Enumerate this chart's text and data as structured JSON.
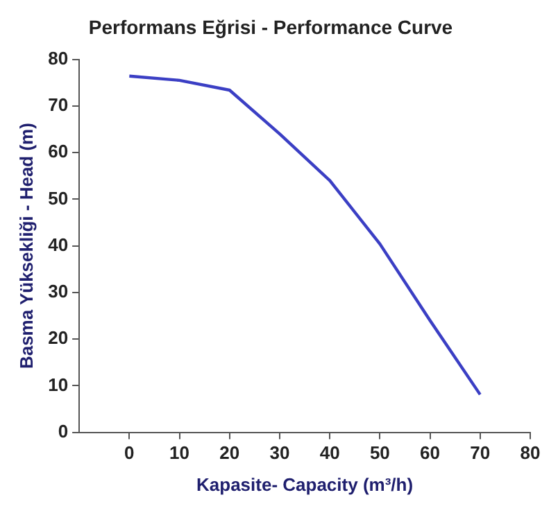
{
  "chart_data": {
    "type": "line",
    "title": "Performans Eğrisi - Performance Curve",
    "xlabel": "Kapasite- Capacity (m³/h)",
    "ylabel": "Basma Yüksekliği - Head (m)",
    "x": [
      0,
      10,
      20,
      30,
      40,
      50,
      60,
      70
    ],
    "series": [
      {
        "color": "#3b3fc4",
        "values": [
          76.4,
          75.5,
          73.4,
          64,
          54,
          40.4,
          24,
          8.1
        ]
      }
    ],
    "xlim": [
      -10,
      80
    ],
    "xticks": [
      0,
      10,
      20,
      30,
      40,
      50,
      60,
      70,
      80
    ],
    "ylim": [
      0,
      80
    ],
    "yticks": [
      0,
      10,
      20,
      30,
      40,
      50,
      60,
      70,
      80
    ],
    "grid": false,
    "legend": false,
    "marker": "none",
    "line_style": "solid"
  }
}
